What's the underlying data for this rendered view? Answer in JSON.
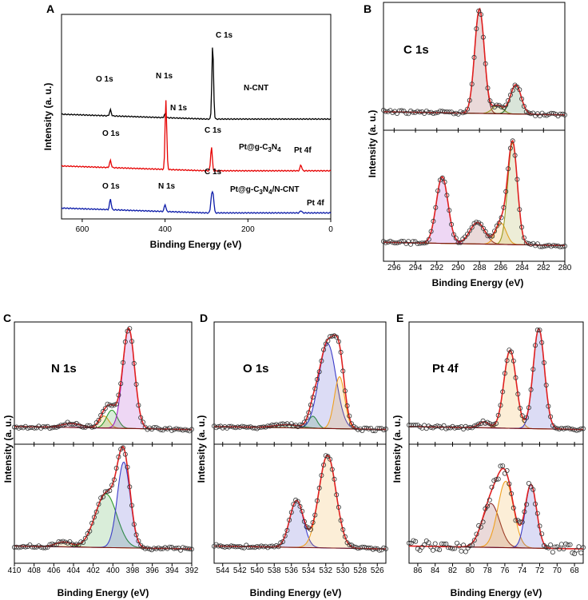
{
  "colors": {
    "raw": "#333333",
    "fit": "#e02020",
    "background": "#7a1010",
    "n_cnt": "#000000",
    "pt_gcn": "#e60000",
    "pt_gcn_cnt": "#0a1aa8",
    "blue": "#3c3cc8",
    "orange": "#f0a020",
    "green": "#2e9a2e",
    "purple": "#a020c0",
    "olive": "#9a9a20",
    "brown": "#8b2a2a",
    "pink": "#d86ab0",
    "darkgreen": "#2a6a2a"
  },
  "chart_data": [
    {
      "panel": "A",
      "type": "line",
      "title": "",
      "xlabel": "Binding Energy (eV)",
      "ylabel": "Intensity (a. u.)",
      "xlim": [
        650,
        0
      ],
      "xticks": [
        600,
        400,
        200,
        0
      ],
      "series": [
        {
          "name": "N-CNT",
          "name_text": "N-CNT",
          "color": "n_cnt",
          "offset": 0.83,
          "peaks": [
            {
              "x": 532,
              "h": 0.05,
              "w": 2
            },
            {
              "x": 400,
              "h": 0.03,
              "w": 2
            },
            {
              "x": 285,
              "h": 0.62,
              "w": 2
            }
          ],
          "annotations": [
            {
              "text": "O 1s",
              "x": 540,
              "y": 0.93
            },
            {
              "text": "N 1s",
              "x": 415,
              "y": 0.95
            },
            {
              "text": "C 1s",
              "x": 270,
              "y": 1.53
            }
          ]
        },
        {
          "name": "Pt@g-C3N4",
          "name_text": "Pt@g-C",
          "name_sub1": "3",
          "name_mid": "N",
          "name_sub2": "4",
          "color": "pt_gcn",
          "offset": 0.4,
          "peaks": [
            {
              "x": 532,
              "h": 0.06,
              "w": 2
            },
            {
              "x": 398,
              "h": 0.58,
              "w": 2
            },
            {
              "x": 288,
              "h": 0.2,
              "w": 2
            },
            {
              "x": 72,
              "h": 0.05,
              "w": 2
            }
          ],
          "annotations": [
            {
              "text": "O 1s",
              "x": 540,
              "y": 0.5
            },
            {
              "text": "N 1s",
              "x": 385,
              "y": 1.05
            },
            {
              "text": "C 1s",
              "x": 270,
              "y": 0.68
            },
            {
              "text": "Pt 4f",
              "x": 80,
              "y": 0.6
            }
          ]
        },
        {
          "name": "Pt@g-C3N4/N-CNT",
          "name_text": "Pt@g-C",
          "name_sub1": "3",
          "name_mid": "N",
          "name_sub2": "4",
          "name_tail": "/N-CNT",
          "color": "pt_gcn_cnt",
          "offset": 0.05,
          "peaks": [
            {
              "x": 532,
              "h": 0.09,
              "w": 2
            },
            {
              "x": 400,
              "h": 0.06,
              "w": 2
            },
            {
              "x": 288,
              "h": 0.13,
              "w": 2
            },
            {
              "x": 284,
              "h": 0.15,
              "w": 2
            },
            {
              "x": 72,
              "h": 0.02,
              "w": 2
            }
          ],
          "annotations": [
            {
              "text": "O 1s",
              "x": 540,
              "y": 0.2
            },
            {
              "text": "N 1s",
              "x": 415,
              "y": 0.2
            },
            {
              "text": "C 1s",
              "x": 270,
              "y": 0.3
            },
            {
              "text": "Pt 4f",
              "x": 80,
              "y": 0.1
            }
          ]
        }
      ]
    },
    {
      "panel": "B",
      "type": "line",
      "label": "C 1s",
      "xlabel": "Binding Energy (eV)",
      "ylabel": "Intensity (a. u.)",
      "xlim": [
        297,
        280
      ],
      "xticks": [
        296,
        294,
        292,
        290,
        288,
        286,
        284,
        282,
        280
      ],
      "upper": {
        "components": [
          {
            "center": 288,
            "height": 1.0,
            "width": 0.45,
            "color": "brown"
          },
          {
            "center": 286.3,
            "height": 0.08,
            "width": 0.5,
            "color": "olive"
          },
          {
            "center": 284.6,
            "height": 0.28,
            "width": 0.5,
            "color": "darkgreen"
          }
        ]
      },
      "lower": {
        "components": [
          {
            "center": 291.5,
            "height": 0.62,
            "width": 0.55,
            "color": "purple"
          },
          {
            "center": 288.2,
            "height": 0.2,
            "width": 0.7,
            "color": "brown"
          },
          {
            "center": 286,
            "height": 0.2,
            "width": 0.5,
            "color": "orange"
          },
          {
            "center": 284.9,
            "height": 0.95,
            "width": 0.45,
            "color": "olive"
          }
        ]
      }
    },
    {
      "panel": "C",
      "type": "line",
      "label": "N 1s",
      "xlabel": "Binding Energy (eV)",
      "ylabel": "Intensity (a. u.)",
      "xlim": [
        410,
        392
      ],
      "xticks": [
        410,
        408,
        406,
        404,
        402,
        400,
        398,
        396,
        394,
        392
      ],
      "upper": {
        "components": [
          {
            "center": 404.2,
            "height": 0.04,
            "width": 1.0,
            "color": "pink"
          },
          {
            "center": 400.9,
            "height": 0.12,
            "width": 0.5,
            "color": "orange"
          },
          {
            "center": 400.1,
            "height": 0.18,
            "width": 0.55,
            "color": "green"
          },
          {
            "center": 398.4,
            "height": 1.0,
            "width": 0.6,
            "color": "purple"
          }
        ]
      },
      "lower": {
        "components": [
          {
            "center": 405,
            "height": 0.05,
            "width": 0.8,
            "color": "orange"
          },
          {
            "center": 400.7,
            "height": 0.55,
            "width": 1.1,
            "color": "green"
          },
          {
            "center": 398.9,
            "height": 0.88,
            "width": 0.65,
            "color": "blue"
          }
        ]
      }
    },
    {
      "panel": "D",
      "type": "line",
      "label": "O 1s",
      "xlabel": "Binding Energy (eV)",
      "ylabel": "Intensity (a. u.)",
      "xlim": [
        545,
        525
      ],
      "xticks": [
        544,
        542,
        540,
        538,
        536,
        534,
        532,
        530,
        528,
        526
      ],
      "upper": {
        "components": [
          {
            "center": 536.5,
            "height": 0.03,
            "width": 1.5,
            "color": "green"
          },
          {
            "center": 533.5,
            "height": 0.12,
            "width": 0.5,
            "color": "green"
          },
          {
            "center": 531.8,
            "height": 0.85,
            "width": 1.0,
            "color": "blue"
          },
          {
            "center": 530.4,
            "height": 0.52,
            "width": 0.6,
            "color": "orange"
          }
        ]
      },
      "lower": {
        "components": [
          {
            "center": 535.4,
            "height": 0.48,
            "width": 0.8,
            "color": "blue"
          },
          {
            "center": 531.8,
            "height": 0.95,
            "width": 1.0,
            "color": "orange"
          }
        ]
      }
    },
    {
      "panel": "E",
      "type": "line",
      "label": "Pt 4f",
      "xlabel": "Binding Energy (eV)",
      "ylabel": "Intensity (a. u.)",
      "xlim": [
        87,
        67
      ],
      "xticks": [
        86,
        84,
        82,
        80,
        78,
        76,
        74,
        72,
        70,
        68
      ],
      "upper": {
        "components": [
          {
            "center": 78.4,
            "height": 0.06,
            "width": 0.6,
            "color": "brown"
          },
          {
            "center": 75.4,
            "height": 0.78,
            "width": 0.7,
            "color": "orange"
          },
          {
            "center": 72.1,
            "height": 1.0,
            "width": 0.65,
            "color": "blue"
          }
        ]
      },
      "lower": {
        "components": [
          {
            "center": 77.6,
            "height": 0.45,
            "width": 1.0,
            "color": "brown"
          },
          {
            "center": 75.9,
            "height": 0.68,
            "width": 0.9,
            "color": "orange"
          },
          {
            "center": 73.0,
            "height": 0.65,
            "width": 0.65,
            "color": "blue"
          }
        ]
      }
    }
  ]
}
